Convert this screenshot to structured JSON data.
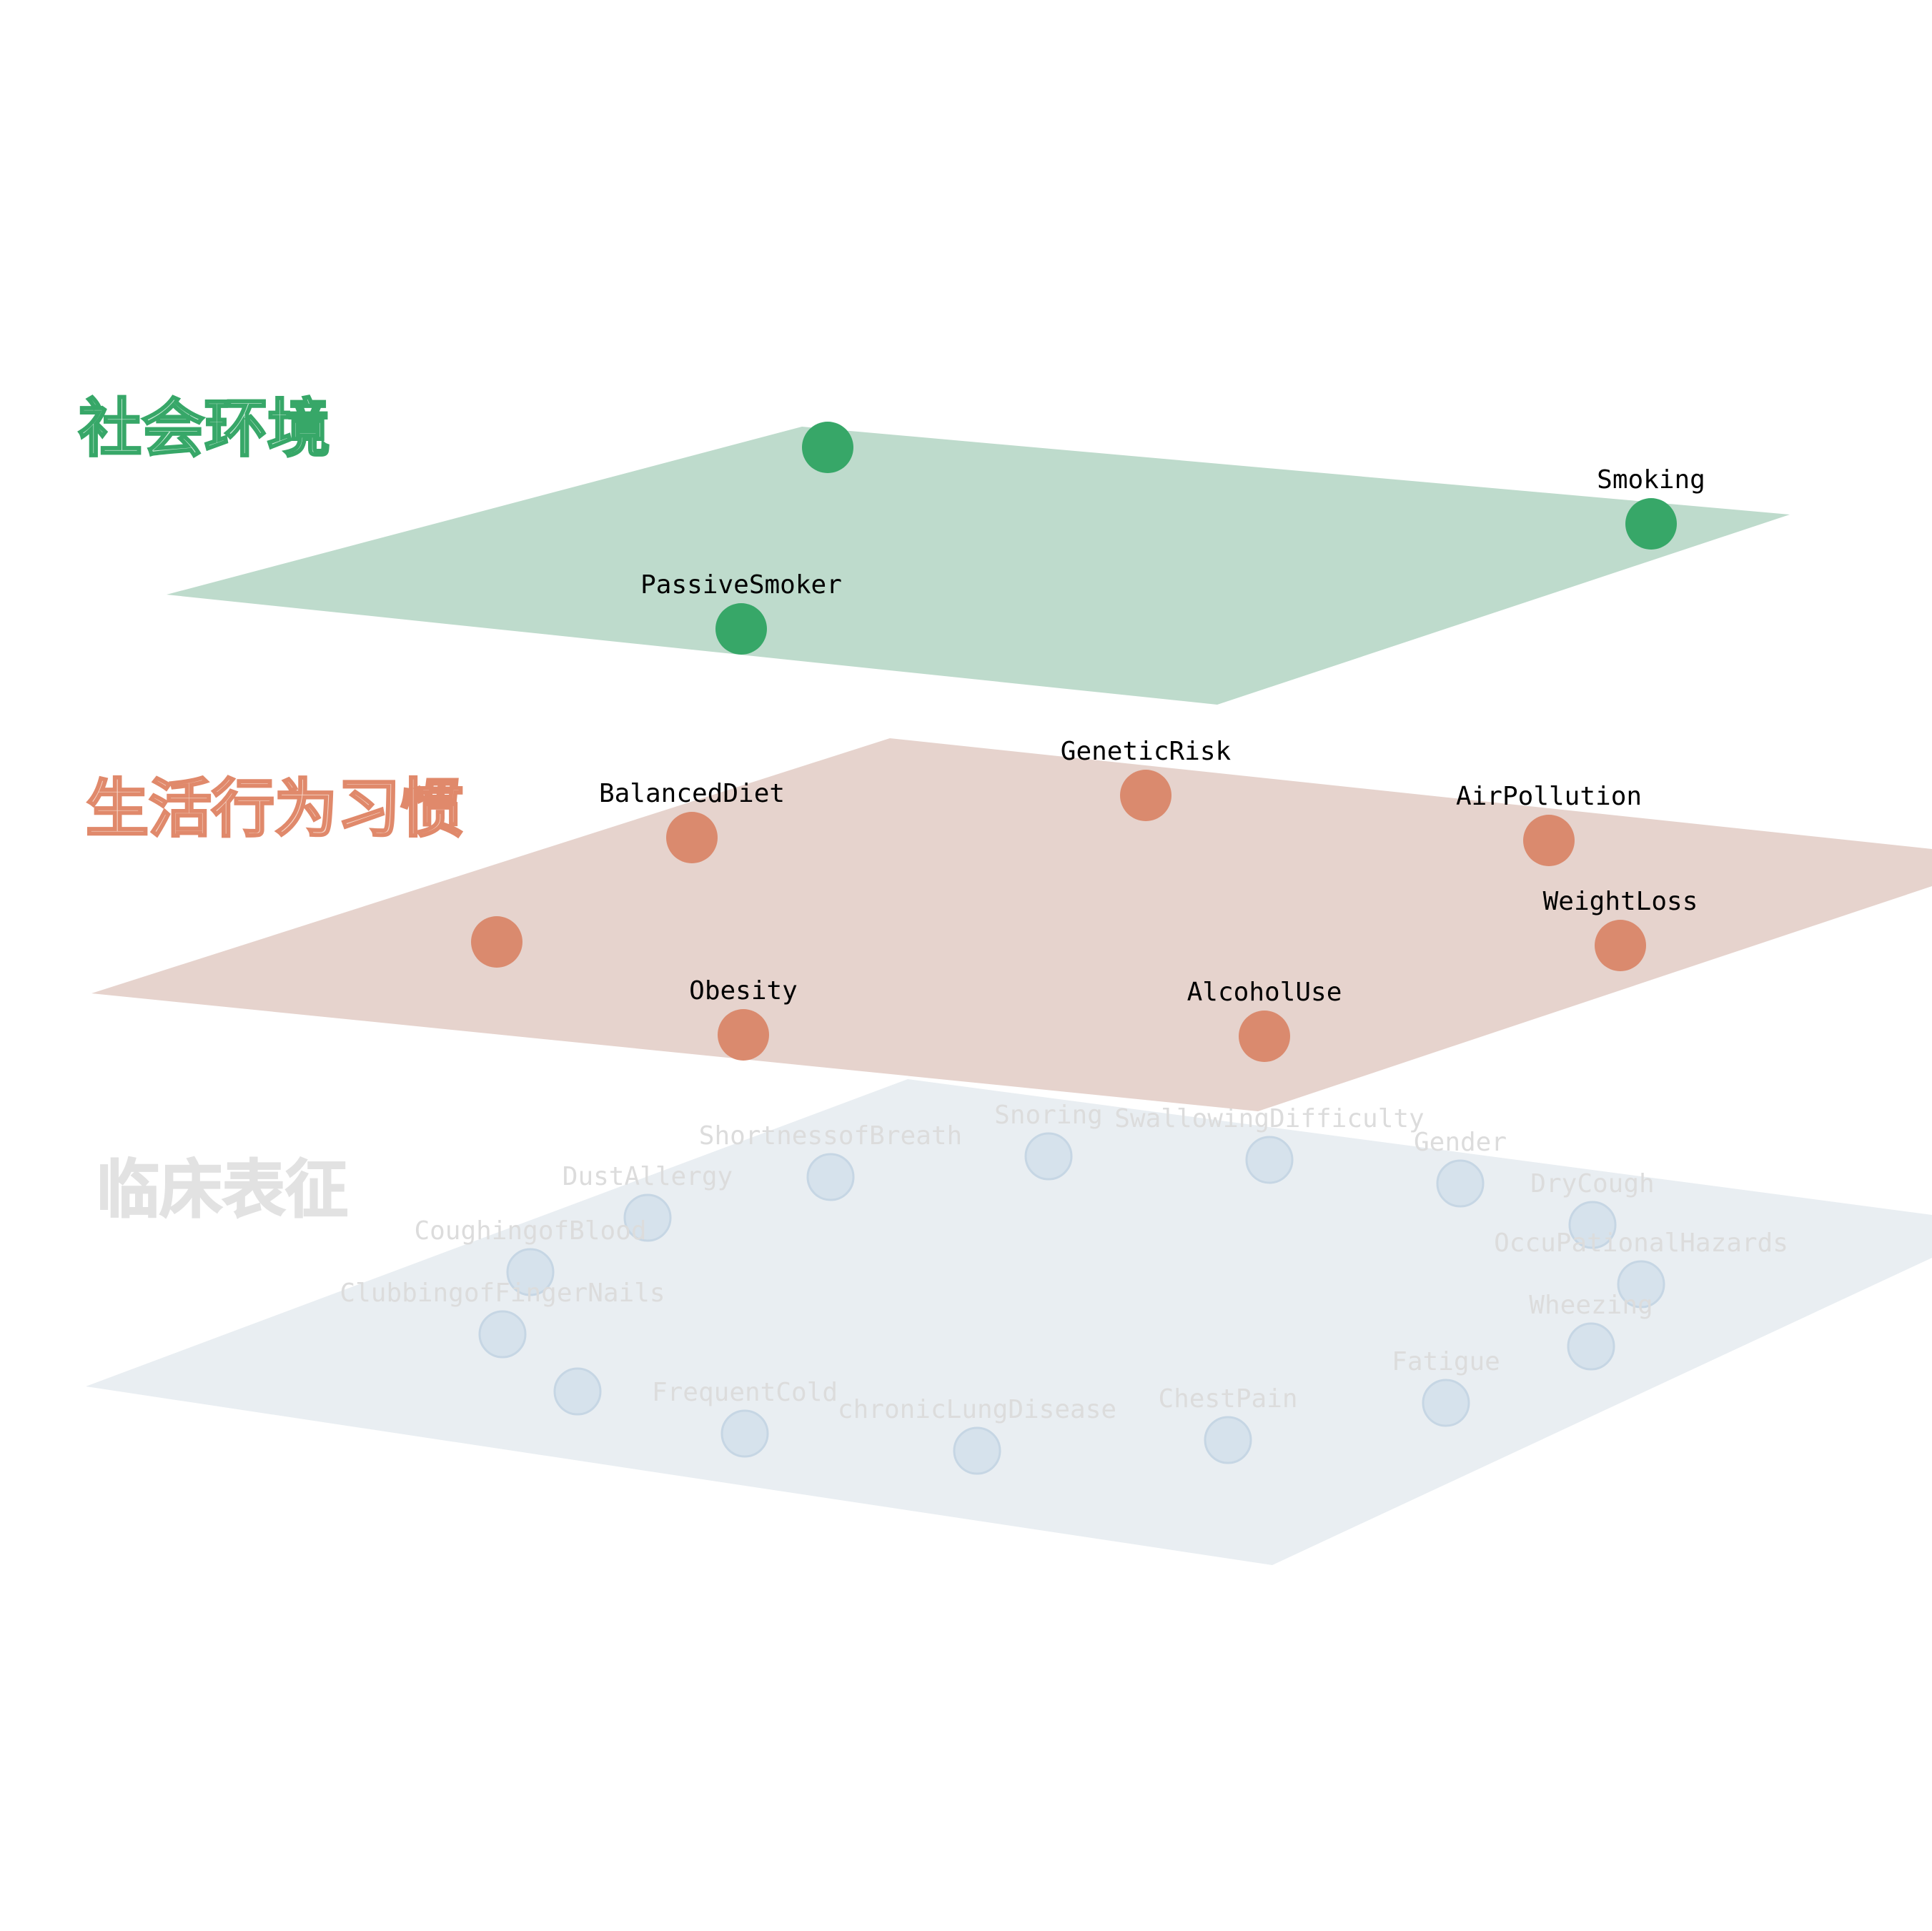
{
  "layers": [
    {
      "id": "social",
      "title": "社会环境",
      "plane_color": "#bedbcc",
      "node_color": "#37a768",
      "title_fill": "#c8ead6",
      "title_stroke": "#37a768",
      "label_color": "#000000",
      "faded": false,
      "nodes": [
        {
          "label": ""
        },
        {
          "label": "Smoking"
        },
        {
          "label": "PassiveSmoker"
        }
      ]
    },
    {
      "id": "lifestyle",
      "title": "生活行为习惯",
      "plane_color": "#e6d3cd",
      "node_color": "#da8a6e",
      "title_fill": "#f6d6c8",
      "title_stroke": "#e0896b",
      "label_color": "#000000",
      "faded": false,
      "nodes": [
        {
          "label": "GeneticRisk"
        },
        {
          "label": "BalancedDiet"
        },
        {
          "label": "AirPollution"
        },
        {
          "label": ""
        },
        {
          "label": "WeightLoss"
        },
        {
          "label": "Obesity"
        },
        {
          "label": "AlcoholUse"
        }
      ]
    },
    {
      "id": "clinical",
      "title": "临床表征",
      "plane_color": "#e9eef2",
      "node_color": "#d6e2ec",
      "node_stroke": "#c6d6e4",
      "title_fill": "#e2e2e2",
      "title_stroke": "#e2e2e2",
      "label_color": "#dcdcdc",
      "faded": true,
      "nodes": [
        {
          "label": "ShortnessofBreath"
        },
        {
          "label": "Snoring"
        },
        {
          "label": "SwallowingDifficulty"
        },
        {
          "label": "Gender"
        },
        {
          "label": "DustAllergy"
        },
        {
          "label": "DryCough"
        },
        {
          "label": "CoughingofBlood"
        },
        {
          "label": "OccuPationalHazards"
        },
        {
          "label": "ClubbingofFingerNails"
        },
        {
          "label": "Wheezing"
        },
        {
          "label": ""
        },
        {
          "label": "Fatigue"
        },
        {
          "label": "FrequentCold"
        },
        {
          "label": "ChestPain"
        },
        {
          "label": "chronicLungDisease"
        }
      ]
    }
  ]
}
